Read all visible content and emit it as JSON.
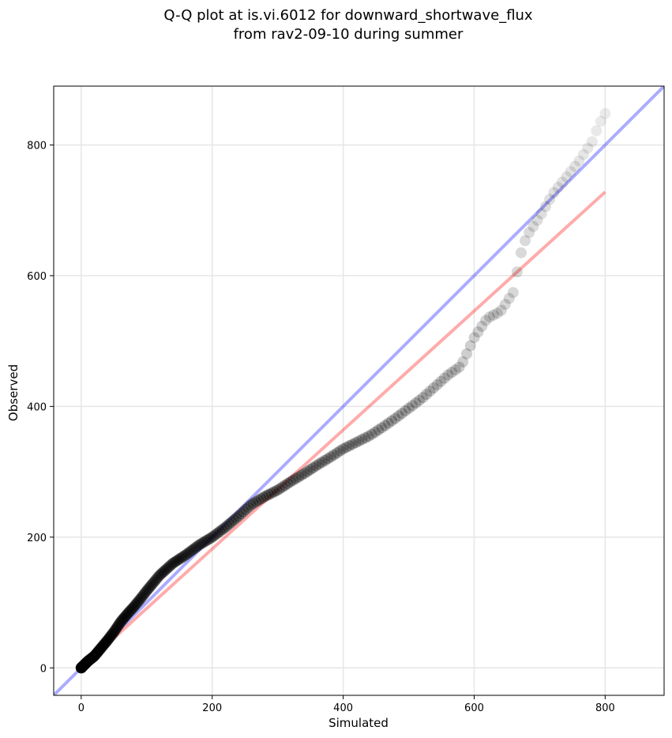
{
  "chart_data": {
    "type": "scatter",
    "title_line1": "Q-Q plot at is.vi.6012 for downward_shortwave_flux",
    "title_line2": "from rav2-09-10 during summer",
    "xlabel": "Simulated",
    "ylabel": "Observed",
    "xlim": [
      -42,
      890
    ],
    "ylim": [
      -42,
      890
    ],
    "xticks": [
      0,
      200,
      400,
      600,
      800
    ],
    "yticks": [
      0,
      200,
      400,
      600,
      800
    ],
    "grid": true,
    "colors": {
      "points": "#000000",
      "identity_line": "#0000ff",
      "fit_line": "#ff0000"
    },
    "quantile_curve": [
      [
        0,
        0
      ],
      [
        5,
        5
      ],
      [
        10,
        10
      ],
      [
        20,
        18
      ],
      [
        30,
        30
      ],
      [
        40,
        42
      ],
      [
        50,
        55
      ],
      [
        60,
        70
      ],
      [
        70,
        82
      ],
      [
        80,
        93
      ],
      [
        90,
        105
      ],
      [
        100,
        118
      ],
      [
        120,
        142
      ],
      [
        140,
        160
      ],
      [
        160,
        173
      ],
      [
        180,
        188
      ],
      [
        200,
        200
      ],
      [
        220,
        215
      ],
      [
        240,
        232
      ],
      [
        260,
        250
      ],
      [
        280,
        262
      ],
      [
        300,
        272
      ],
      [
        320,
        285
      ],
      [
        340,
        297
      ],
      [
        360,
        310
      ],
      [
        380,
        322
      ],
      [
        400,
        335
      ],
      [
        420,
        345
      ],
      [
        440,
        355
      ],
      [
        460,
        368
      ],
      [
        480,
        382
      ],
      [
        500,
        397
      ],
      [
        520,
        412
      ],
      [
        540,
        430
      ],
      [
        560,
        448
      ],
      [
        580,
        462
      ],
      [
        600,
        505
      ],
      [
        620,
        535
      ],
      [
        640,
        545
      ],
      [
        660,
        575
      ],
      [
        670,
        630
      ],
      [
        680,
        660
      ],
      [
        700,
        690
      ],
      [
        720,
        725
      ],
      [
        740,
        750
      ],
      [
        760,
        775
      ],
      [
        780,
        805
      ],
      [
        790,
        830
      ],
      [
        800,
        848
      ]
    ],
    "identity_line": [
      [
        -42,
        -42
      ],
      [
        890,
        890
      ]
    ],
    "fit_line": [
      [
        0,
        0
      ],
      [
        800,
        728
      ]
    ]
  }
}
